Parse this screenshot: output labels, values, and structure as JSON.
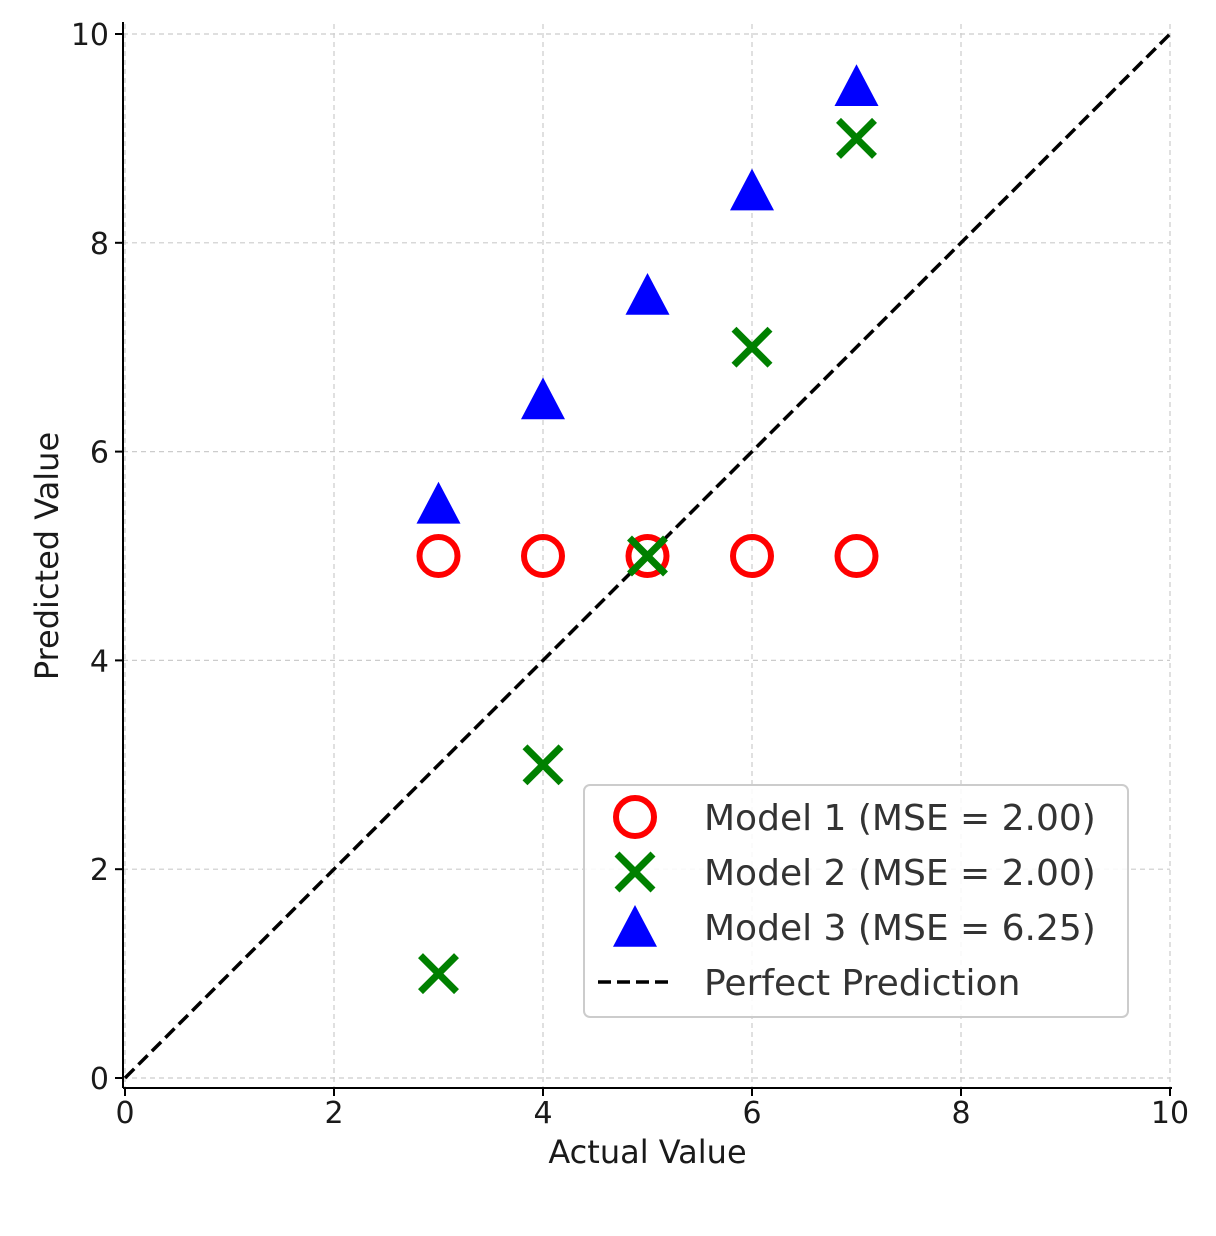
{
  "chart_data": {
    "type": "scatter",
    "title": "",
    "xlabel": "Actual Value",
    "ylabel": "Predicted Value",
    "xlim": [
      0,
      10
    ],
    "ylim": [
      0,
      10
    ],
    "xticks": [
      0,
      2,
      4,
      6,
      8,
      10
    ],
    "yticks": [
      0,
      2,
      4,
      6,
      8,
      10
    ],
    "grid": true,
    "legend_position": "lower-right",
    "series": [
      {
        "name": "Model 1 (MSE = 2.00)",
        "marker": "circle",
        "color": "#ff0000",
        "x": [
          3,
          4,
          5,
          6,
          7
        ],
        "y": [
          5,
          5,
          5,
          5,
          5
        ]
      },
      {
        "name": "Model 2 (MSE = 2.00)",
        "marker": "x",
        "color": "#008000",
        "x": [
          3,
          4,
          5,
          6,
          7
        ],
        "y": [
          1,
          3,
          5,
          7,
          9
        ]
      },
      {
        "name": "Model 3 (MSE = 6.25)",
        "marker": "triangle",
        "color": "#0000ff",
        "x": [
          3,
          4,
          5,
          6,
          7
        ],
        "y": [
          5.5,
          6.5,
          7.5,
          8.5,
          9.5
        ]
      }
    ],
    "reference_line": {
      "name": "Perfect Prediction",
      "style": "dashed",
      "color": "#000000",
      "x": [
        0,
        10
      ],
      "y": [
        0,
        10
      ]
    }
  }
}
